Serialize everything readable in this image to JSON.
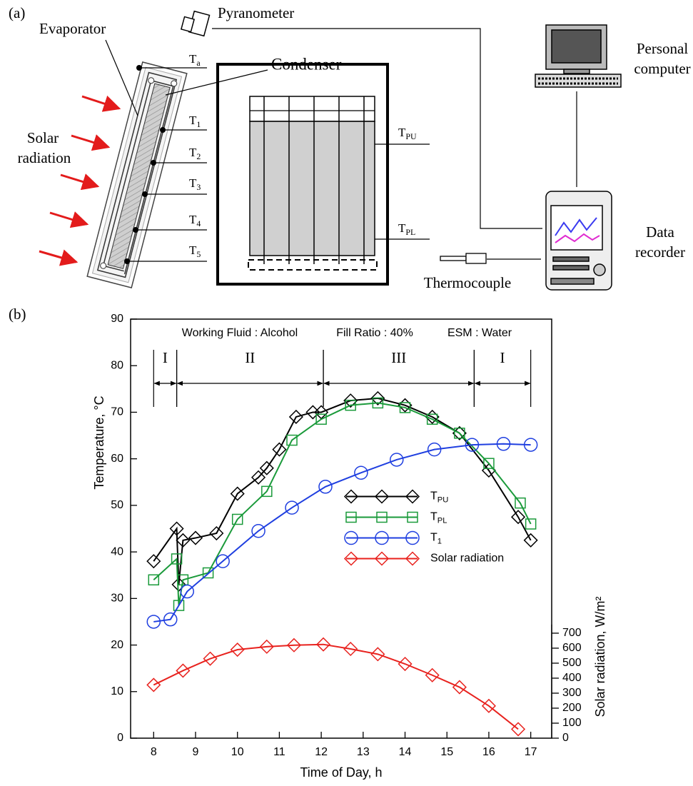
{
  "diagram": {
    "panel_label": "(a)",
    "pyranometer": "Pyranometer",
    "evaporator": "Evaporator",
    "condenser": "Condenser",
    "computer": [
      "Personal",
      "computer"
    ],
    "solar": [
      "Solar",
      "radiation"
    ],
    "recorder": [
      "Data",
      "recorder"
    ],
    "thermocouple": "Thermocouple",
    "sensors": [
      "Ta",
      "T1",
      "T2",
      "T3",
      "T4",
      "T5",
      "TPU",
      "TPL"
    ]
  },
  "chart_data": {
    "type": "line",
    "panel_label": "(b)",
    "annotations": [
      "Working Fluid : Alcohol",
      "Fill Ratio : 40%",
      "ESM : Water"
    ],
    "phases": [
      {
        "label": "I",
        "x": [
          8,
          8.55
        ]
      },
      {
        "label": "II",
        "x": [
          8.55,
          12.05
        ]
      },
      {
        "label": "III",
        "x": [
          12.05,
          15.65
        ]
      },
      {
        "label": "I",
        "x": [
          15.65,
          17.0
        ]
      }
    ],
    "xlabel": "Time of Day, h",
    "ylabel": "Temperature, °C",
    "y2label": "Solar radiation, W/m²",
    "xlim": [
      7.45,
      17.5
    ],
    "xticks": [
      8,
      9,
      10,
      11,
      12,
      13,
      14,
      15,
      16,
      17
    ],
    "ylim": [
      0,
      90
    ],
    "yticks": [
      0,
      10,
      20,
      30,
      40,
      50,
      60,
      70,
      80,
      90
    ],
    "y2lim": [
      0,
      2794
    ],
    "y2ticks": [
      0,
      100,
      200,
      300,
      400,
      500,
      600,
      700
    ],
    "legend": "center right",
    "series": [
      {
        "name": "TPU",
        "color": "#000000",
        "marker": "diamond",
        "x": [
          8.0,
          8.55,
          8.6,
          8.7,
          9.0,
          9.5,
          10.0,
          10.5,
          10.7,
          11.0,
          11.4,
          11.8,
          12.0,
          12.7,
          13.35,
          14.0,
          14.65,
          15.3,
          16.0,
          16.7,
          17.0
        ],
        "values": [
          38,
          45,
          33,
          42.5,
          43,
          44,
          52.5,
          56,
          58,
          62,
          69,
          70,
          70,
          72.5,
          73,
          71.5,
          69,
          65.5,
          57.5,
          47.5,
          42.5
        ]
      },
      {
        "name": "TPL",
        "color": "#1a9a3a",
        "marker": "square",
        "x": [
          8.0,
          8.55,
          8.6,
          8.7,
          9.3,
          10.0,
          10.7,
          11.3,
          12.0,
          12.7,
          13.35,
          14.0,
          14.65,
          15.3,
          16.0,
          16.75,
          17.0
        ],
        "values": [
          34,
          38.5,
          28.5,
          34,
          35.5,
          47,
          53,
          64,
          68.5,
          71.5,
          72,
          71,
          68.5,
          65.5,
          59,
          50.5,
          46
        ]
      },
      {
        "name": "T1",
        "color": "#1f3fe0",
        "marker": "circle",
        "x": [
          8.0,
          8.4,
          8.8,
          9.65,
          10.5,
          11.3,
          12.1,
          12.95,
          13.8,
          14.7,
          15.6,
          16.35,
          17.0
        ],
        "values": [
          25,
          25.5,
          31.5,
          38,
          44.5,
          49.5,
          54,
          57,
          59.8,
          62,
          63,
          63.2,
          63
        ]
      },
      {
        "name": "Solar radiation",
        "color": "#e8221e",
        "marker": "diamond",
        "axis": "y2",
        "x": [
          8.0,
          8.7,
          9.35,
          10.0,
          10.7,
          11.35,
          12.05,
          12.7,
          13.35,
          14.0,
          14.65,
          15.3,
          16.0,
          16.7
        ],
        "values": [
          355,
          450,
          530,
          590,
          610,
          620,
          625,
          595,
          560,
          495,
          420,
          340,
          215,
          60
        ]
      }
    ]
  }
}
